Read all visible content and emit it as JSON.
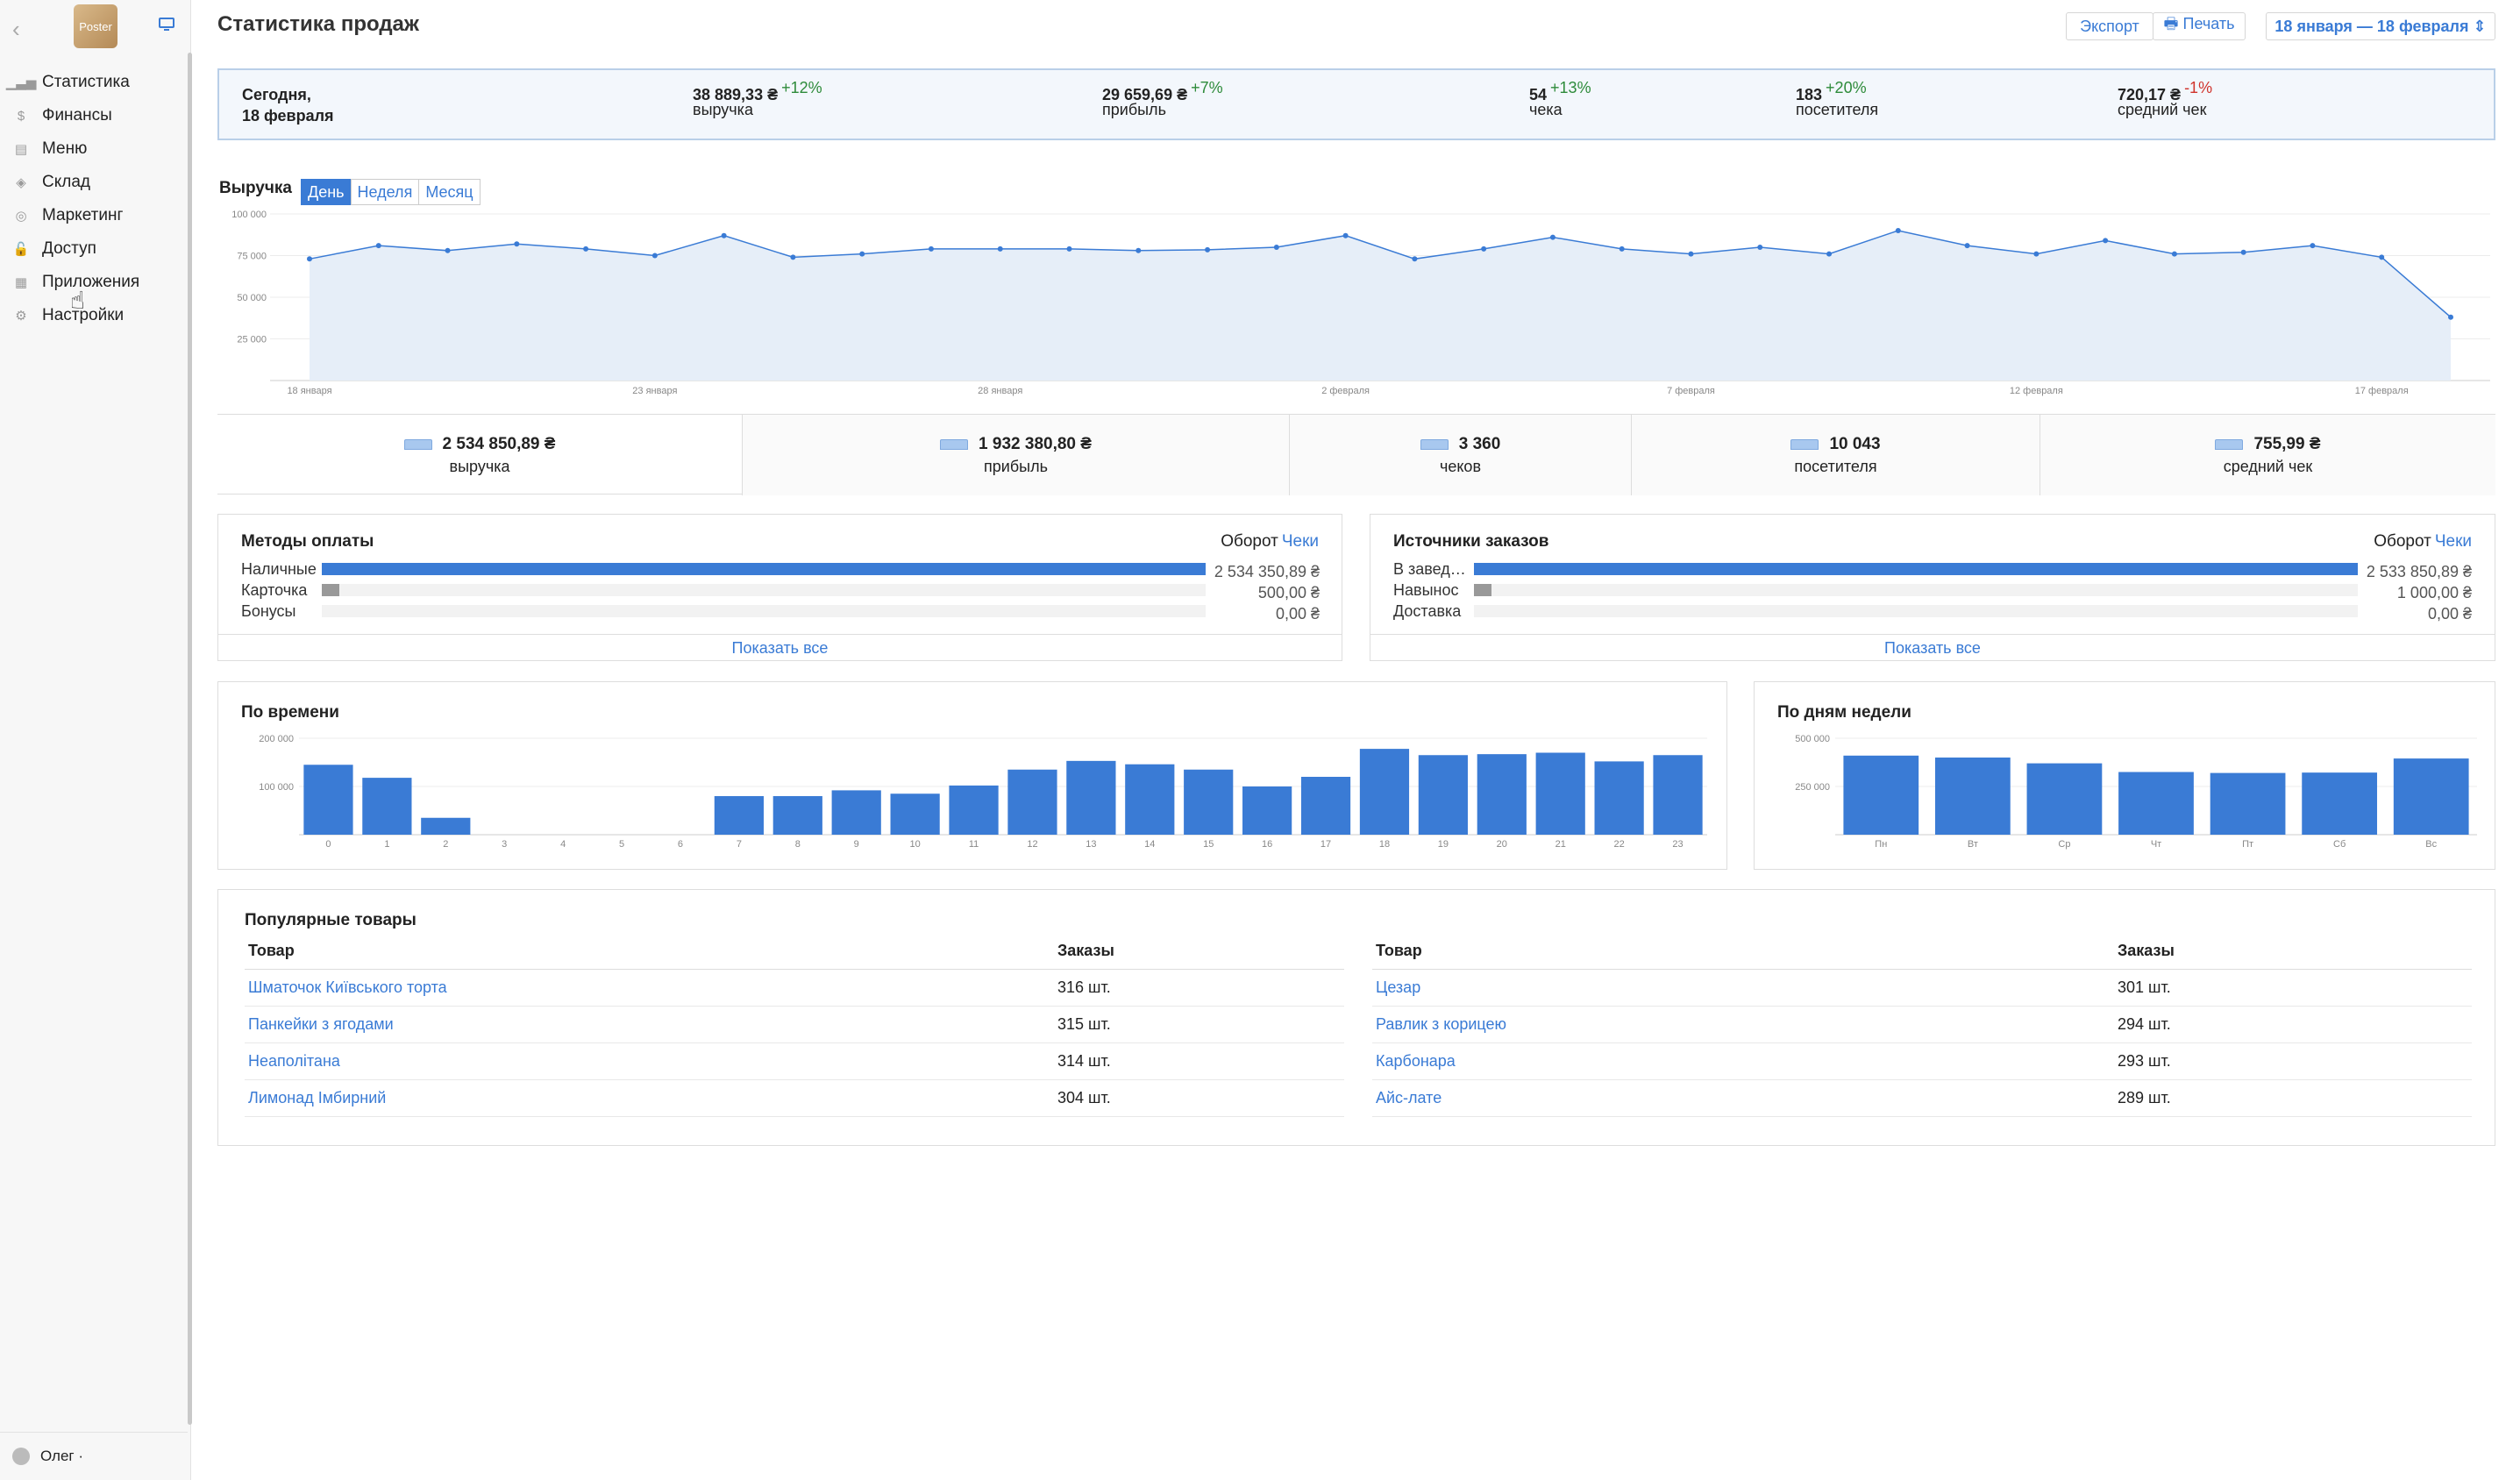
{
  "sidebar": {
    "logo": "Poster",
    "items": [
      {
        "label": "Статистика",
        "icon": "bar-chart-icon",
        "glyph": "▁▃▅"
      },
      {
        "label": "Финансы",
        "icon": "dollar-icon",
        "glyph": "$"
      },
      {
        "label": "Меню",
        "icon": "document-icon",
        "glyph": "▤"
      },
      {
        "label": "Склад",
        "icon": "layers-icon",
        "glyph": "◈"
      },
      {
        "label": "Маркетинг",
        "icon": "target-icon",
        "glyph": "◎"
      },
      {
        "label": "Доступ",
        "icon": "lock-icon",
        "glyph": "🔓"
      },
      {
        "label": "Приложения",
        "icon": "grid-icon",
        "glyph": "▦"
      },
      {
        "label": "Настройки",
        "icon": "gear-icon",
        "glyph": "⚙"
      }
    ],
    "user": "Олег ·"
  },
  "header": {
    "title": "Статистика продаж",
    "export": "Экспорт",
    "print": "🖶 Печать",
    "date_range": "18 января — 18 февраля ⇕"
  },
  "today": {
    "label": "Сегодня,",
    "date": "18 февраля",
    "metrics": [
      {
        "value": "38 889,33 ₴",
        "delta": "+12%",
        "dir": "up",
        "label": "выручка"
      },
      {
        "value": "29 659,69 ₴",
        "delta": "+7%",
        "dir": "up",
        "label": "прибыль"
      },
      {
        "value": "54",
        "delta": "+13%",
        "dir": "up",
        "label": "чека"
      },
      {
        "value": "183",
        "delta": "+20%",
        "dir": "up",
        "label": "посетителя"
      },
      {
        "value": "720,17 ₴",
        "delta": "-1%",
        "dir": "down",
        "label": "средний чек"
      }
    ]
  },
  "revenue": {
    "title": "Выручка",
    "tabs": [
      "День",
      "Неделя",
      "Месяц"
    ],
    "active_tab": 0
  },
  "chart_data": [
    {
      "type": "area",
      "title": "Выручка",
      "ylim": [
        0,
        100000
      ],
      "yticks": [
        "100 000",
        "75 000",
        "50 000",
        "25 000"
      ],
      "ytick_values": [
        100000,
        75000,
        50000,
        25000
      ],
      "xtick_labels": [
        "18 января",
        "23 января",
        "28 января",
        "2 февраля",
        "7 февраля",
        "12 февраля",
        "17 февраля"
      ],
      "xtick_index": [
        0,
        5,
        10,
        15,
        20,
        25,
        30
      ],
      "values": [
        73000,
        81000,
        78000,
        82000,
        79000,
        75000,
        87000,
        74000,
        76000,
        79000,
        79000,
        79000,
        78000,
        78500,
        80000,
        87000,
        73000,
        79000,
        86000,
        79000,
        76000,
        80000,
        76000,
        90000,
        81000,
        76000,
        84000,
        76000,
        77000,
        81000,
        74000,
        38000
      ],
      "grid": true
    },
    {
      "type": "bar",
      "title": "По времени",
      "categories": [
        "0",
        "1",
        "2",
        "3",
        "4",
        "5",
        "6",
        "7",
        "8",
        "9",
        "10",
        "11",
        "12",
        "13",
        "14",
        "15",
        "16",
        "17",
        "18",
        "19",
        "20",
        "21",
        "22",
        "23"
      ],
      "values": [
        145000,
        118000,
        35000,
        0,
        0,
        0,
        0,
        80000,
        80000,
        92000,
        85000,
        102000,
        135000,
        153000,
        146000,
        135000,
        100000,
        120000,
        178000,
        165000,
        167000,
        170000,
        152000,
        165000
      ],
      "yticks": [
        "200 000",
        "100 000"
      ],
      "ytick_values": [
        200000,
        100000
      ],
      "ylim": [
        0,
        200000
      ]
    },
    {
      "type": "bar",
      "title": "По дням недели",
      "categories": [
        "Пн",
        "Вт",
        "Ср",
        "Чт",
        "Пт",
        "Сб",
        "Вс"
      ],
      "values": [
        410000,
        400000,
        370000,
        325000,
        320000,
        322000,
        395000
      ],
      "yticks": [
        "500 000",
        "250 000"
      ],
      "ytick_values": [
        500000,
        250000
      ],
      "ylim": [
        0,
        500000
      ]
    }
  ],
  "totals": [
    {
      "value": "2 534 850,89 ₴",
      "label": "выручка"
    },
    {
      "value": "1 932 380,80 ₴",
      "label": "прибыль"
    },
    {
      "value": "3 360",
      "label": "чеков"
    },
    {
      "value": "10 043",
      "label": "посетителя"
    },
    {
      "value": "755,99 ₴",
      "label": "средний чек"
    }
  ],
  "payments": {
    "title": "Методы оплаты",
    "oborot": "Оборот",
    "checks": "Чеки",
    "rows": [
      {
        "label": "Наличные",
        "amount": "2 534 350,89 ₴",
        "share": 1.0
      },
      {
        "label": "Карточка",
        "amount": "500,00 ₴",
        "share": 0.002
      },
      {
        "label": "Бонусы",
        "amount": "0,00 ₴",
        "share": 0
      }
    ],
    "show_all": "Показать все"
  },
  "sources": {
    "title": "Источники заказов",
    "oborot": "Оборот",
    "checks": "Чеки",
    "rows": [
      {
        "label": "В завед…",
        "amount": "2 533 850,89 ₴",
        "share": 1.0
      },
      {
        "label": "Навынос",
        "amount": "1 000,00 ₴",
        "share": 0.002
      },
      {
        "label": "Доставка",
        "amount": "0,00 ₴",
        "share": 0
      }
    ],
    "show_all": "Показать все"
  },
  "popular": {
    "title": "Популярные товары",
    "col_product": "Товар",
    "col_orders": "Заказы",
    "left": [
      {
        "name": "Шматочок Київського торта",
        "orders": "316 шт."
      },
      {
        "name": "Панкейки з ягодами",
        "orders": "315 шт."
      },
      {
        "name": "Неаполітана",
        "orders": "314 шт."
      },
      {
        "name": "Лимонад Імбирний",
        "orders": "304 шт."
      }
    ],
    "right": [
      {
        "name": "Цезар",
        "orders": "301 шт."
      },
      {
        "name": "Равлик з корицею",
        "orders": "294 шт."
      },
      {
        "name": "Карбонара",
        "orders": "293 шт."
      },
      {
        "name": "Айс-лате",
        "orders": "289 шт."
      }
    ]
  },
  "colors": {
    "accent": "#3a7bd5",
    "bar": "#3a7bd5",
    "area": "#e6eef8",
    "line": "#3a7bd5",
    "up": "#2e8b3a",
    "down": "#d0342c"
  }
}
